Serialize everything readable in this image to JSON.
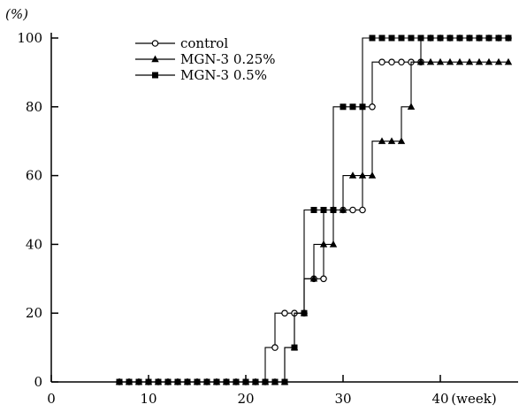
{
  "chart_data": {
    "type": "line",
    "step": true,
    "xlabel": "(week)",
    "ylabel": "(%)",
    "xlim": [
      0,
      48
    ],
    "ylim": [
      0,
      100
    ],
    "xticks": [
      0,
      10,
      20,
      30,
      40
    ],
    "xtick_labels": [
      "0",
      "10",
      "20",
      "30",
      "40"
    ],
    "yticks": [
      0,
      20,
      40,
      60,
      80,
      100
    ],
    "ytick_labels": [
      "0",
      "20",
      "40",
      "60",
      "80",
      "100"
    ],
    "grid": false,
    "legend_position": "top-left",
    "series": [
      {
        "name": "control",
        "marker": "open-circle",
        "x": [
          7,
          8,
          9,
          10,
          11,
          12,
          13,
          14,
          15,
          16,
          17,
          18,
          19,
          20,
          21,
          22,
          23,
          24,
          25,
          26,
          27,
          28,
          29,
          30,
          31,
          32,
          33,
          34,
          35,
          36,
          37,
          38,
          39,
          40,
          41,
          42,
          43,
          44,
          45,
          46,
          47
        ],
        "values": [
          0,
          0,
          0,
          0,
          0,
          0,
          0,
          0,
          0,
          0,
          0,
          0,
          0,
          0,
          0,
          0,
          10,
          20,
          20,
          20,
          30,
          30,
          50,
          50,
          50,
          50,
          80,
          93,
          93,
          93,
          93,
          93,
          100,
          100,
          100,
          100,
          100,
          100,
          100,
          100,
          100
        ]
      },
      {
        "name": "MGN-3  0.25%",
        "marker": "filled-triangle",
        "x": [
          7,
          8,
          9,
          10,
          11,
          12,
          13,
          14,
          15,
          16,
          17,
          18,
          19,
          20,
          21,
          22,
          23,
          24,
          25,
          26,
          27,
          28,
          29,
          30,
          31,
          32,
          33,
          34,
          35,
          36,
          37,
          38,
          39,
          40,
          41,
          42,
          43,
          44,
          45,
          46,
          47
        ],
        "values": [
          0,
          0,
          0,
          0,
          0,
          0,
          0,
          0,
          0,
          0,
          0,
          0,
          0,
          0,
          0,
          0,
          0,
          0,
          10,
          20,
          30,
          40,
          40,
          50,
          60,
          60,
          60,
          70,
          70,
          70,
          80,
          93,
          93,
          93,
          93,
          93,
          93,
          93,
          93,
          93,
          93
        ]
      },
      {
        "name": "MGN-3  0.5%",
        "marker": "filled-square",
        "x": [
          7,
          8,
          9,
          10,
          11,
          12,
          13,
          14,
          15,
          16,
          17,
          18,
          19,
          20,
          21,
          22,
          23,
          24,
          25,
          26,
          27,
          28,
          29,
          30,
          31,
          32,
          33,
          34,
          35,
          36,
          37,
          38,
          39,
          40,
          41,
          42,
          43,
          44,
          45,
          46,
          47
        ],
        "values": [
          0,
          0,
          0,
          0,
          0,
          0,
          0,
          0,
          0,
          0,
          0,
          0,
          0,
          0,
          0,
          0,
          0,
          0,
          10,
          20,
          50,
          50,
          50,
          80,
          80,
          80,
          100,
          100,
          100,
          100,
          100,
          100,
          100,
          100,
          100,
          100,
          100,
          100,
          100,
          100,
          100
        ]
      }
    ]
  }
}
